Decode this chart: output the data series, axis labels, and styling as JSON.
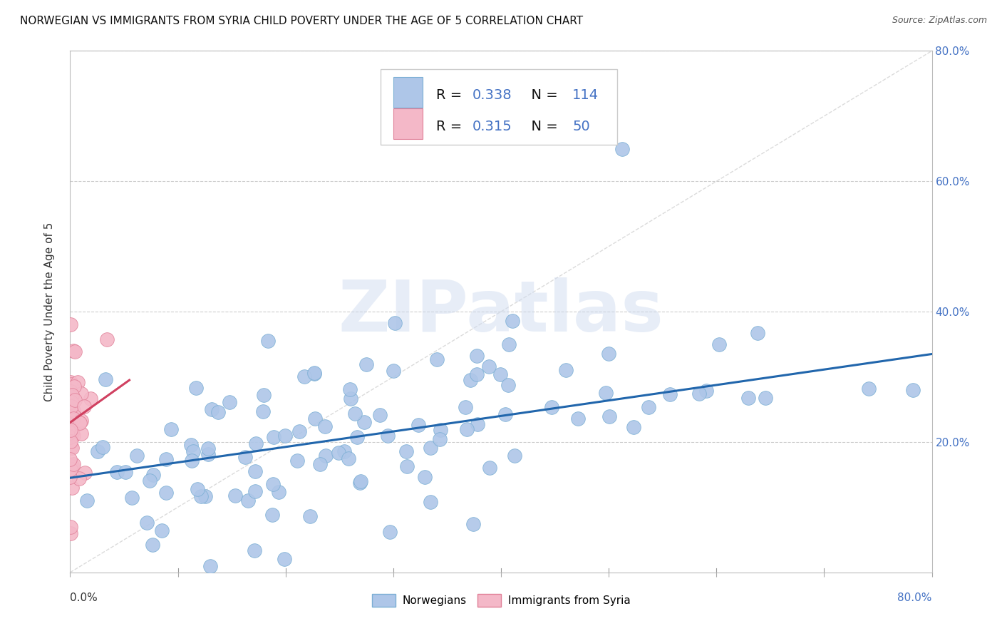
{
  "title": "NORWEGIAN VS IMMIGRANTS FROM SYRIA CHILD POVERTY UNDER THE AGE OF 5 CORRELATION CHART",
  "source": "Source: ZipAtlas.com",
  "ylabel": "Child Poverty Under the Age of 5",
  "norwegian_R": 0.338,
  "norwegian_N": 114,
  "syrian_R": 0.315,
  "syrian_N": 50,
  "norwegian_color": "#AEC6E8",
  "norwegian_edge": "#7BAFD4",
  "syrian_color": "#F4B8C8",
  "syrian_edge": "#E08098",
  "trend_norwegian_color": "#2166AC",
  "trend_syrian_color": "#D04060",
  "diagonal_color": "#CCCCCC",
  "background_color": "#FFFFFF",
  "grid_color": "#CCCCCC",
  "watermark_color": "#D0DCF0",
  "watermark_text": "ZIPatlas",
  "title_fontsize": 11,
  "label_fontsize": 10,
  "tick_fontsize": 11,
  "legend_fontsize": 14,
  "xlim": [
    0.0,
    0.8
  ],
  "ylim": [
    0.0,
    0.8
  ],
  "nor_trend_x0": 0.0,
  "nor_trend_y0": 0.145,
  "nor_trend_x1": 0.8,
  "nor_trend_y1": 0.335,
  "syr_trend_x0": 0.0,
  "syr_trend_y0": 0.23,
  "syr_trend_x1": 0.055,
  "syr_trend_y1": 0.295
}
